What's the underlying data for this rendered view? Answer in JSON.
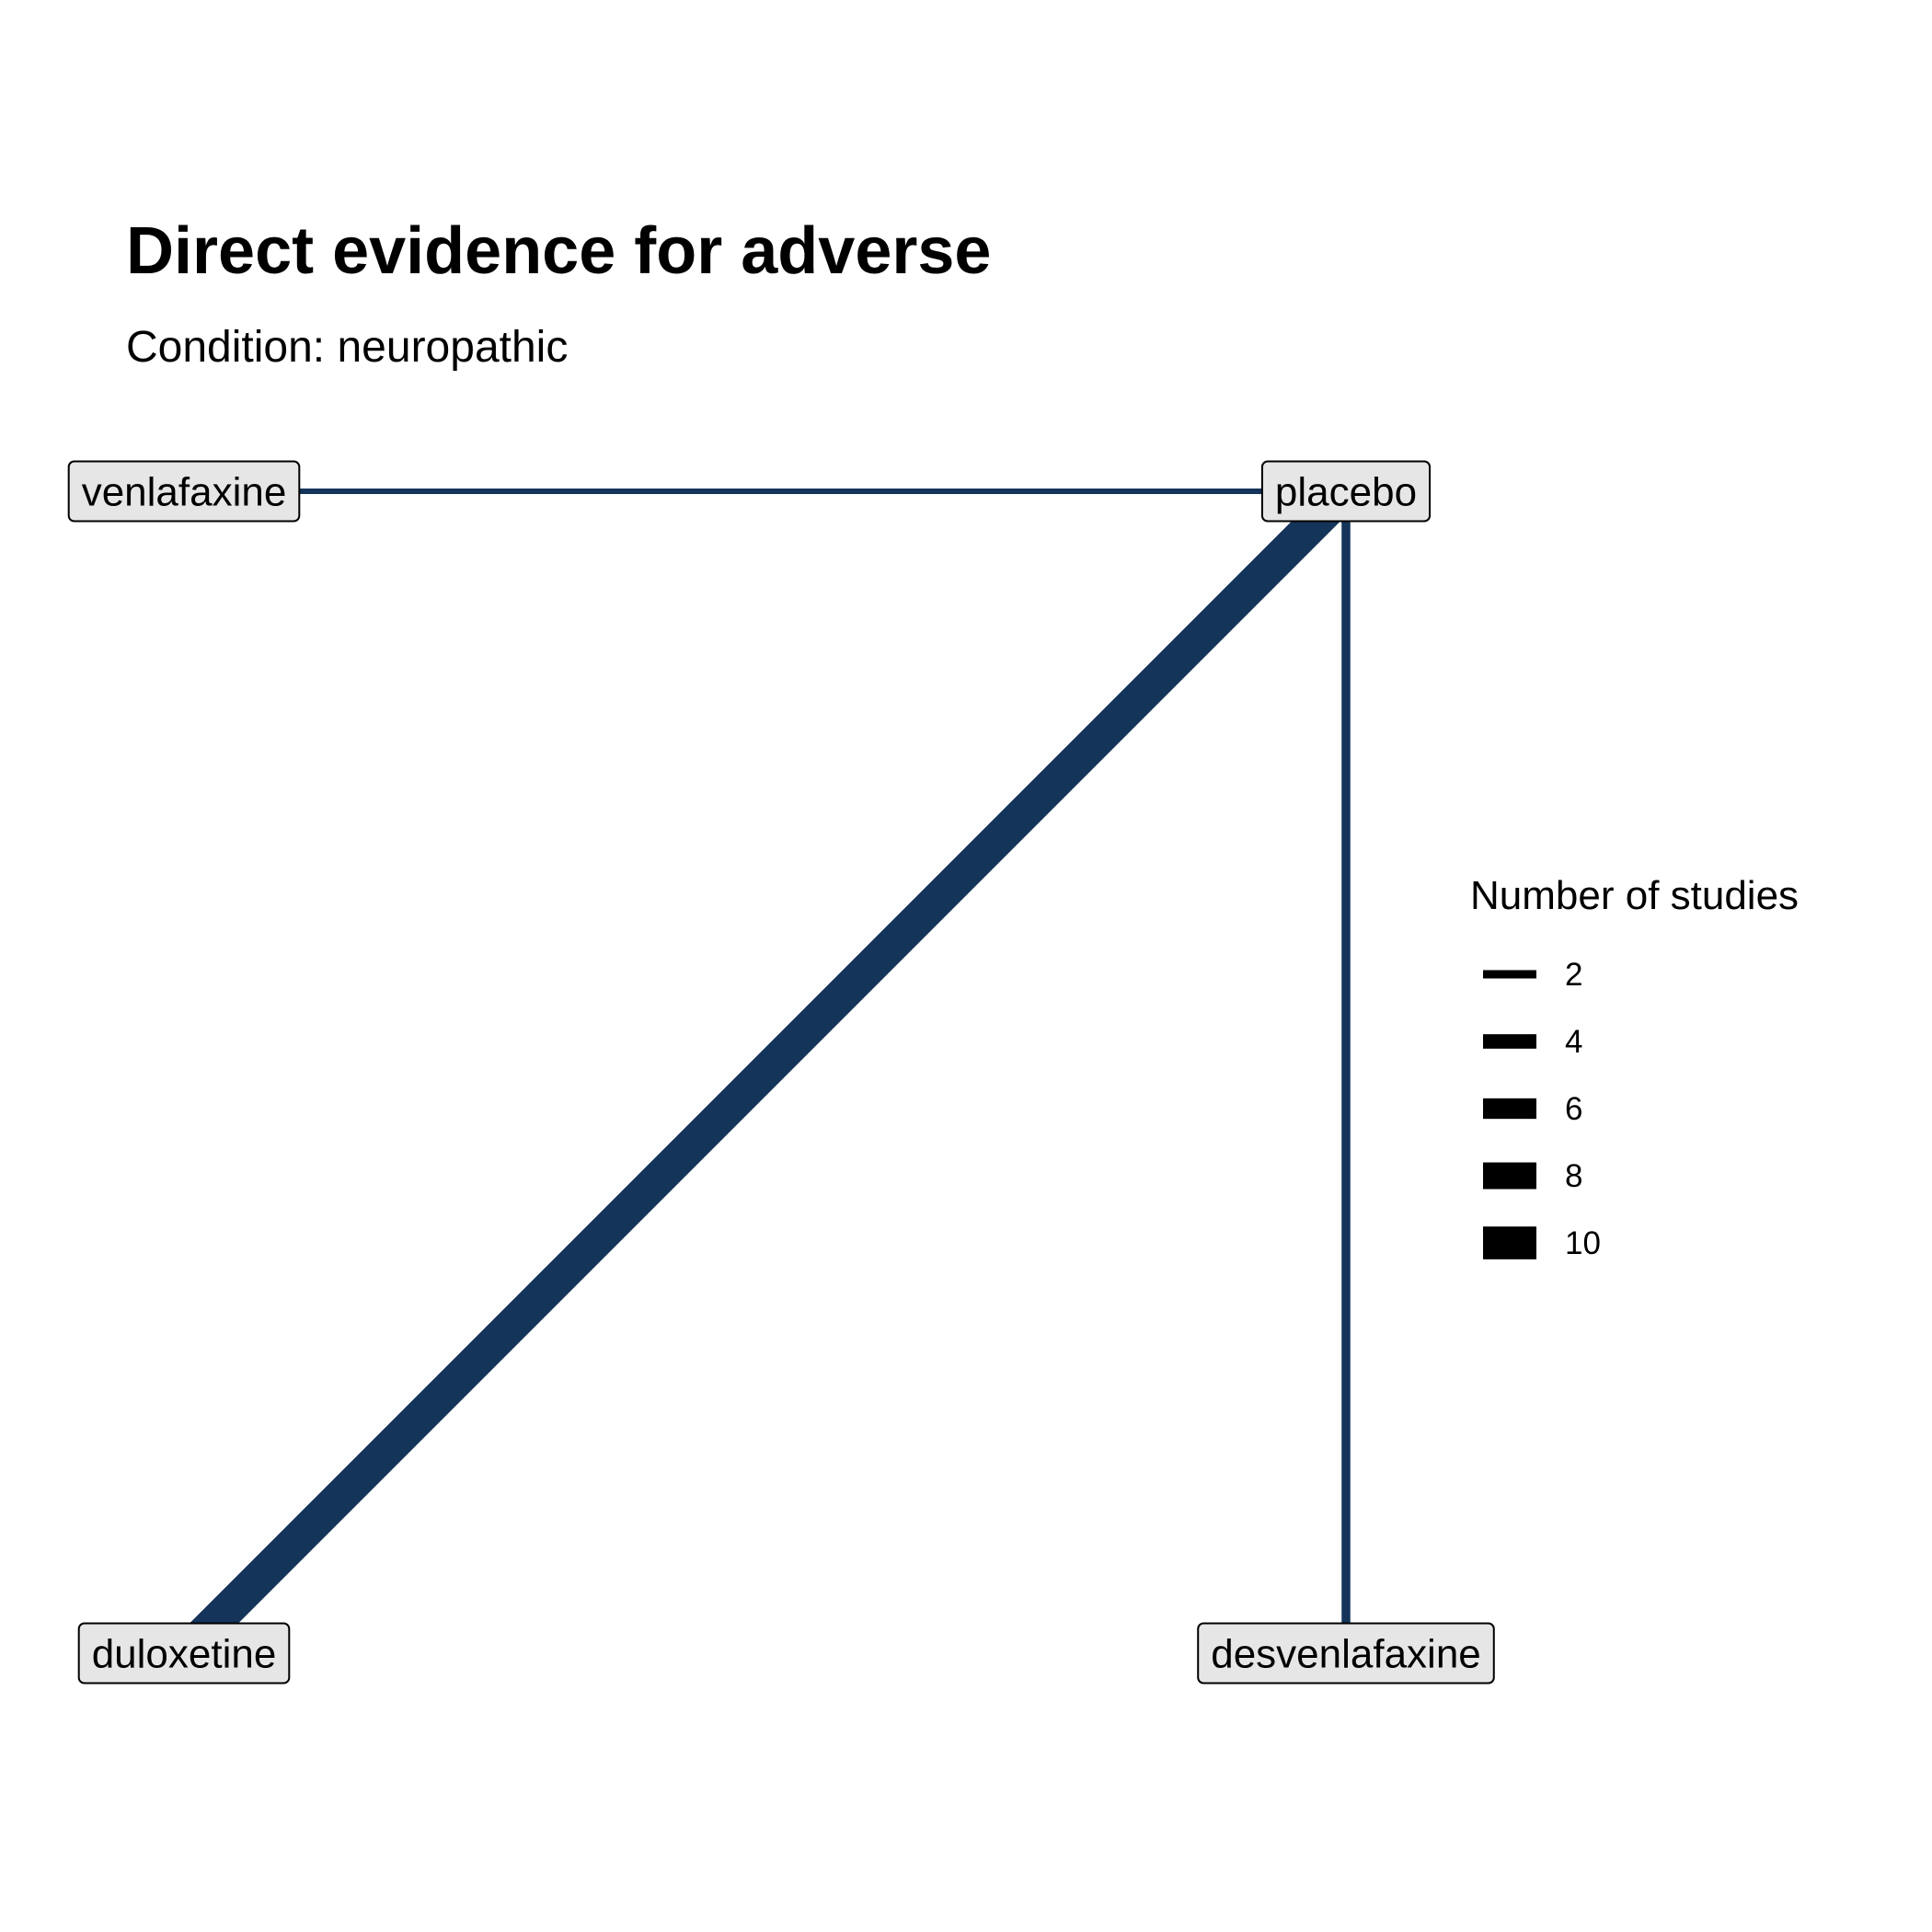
{
  "title": "Direct evidence for adverse",
  "subtitle": "Condition: neuropathic",
  "colors": {
    "edge": "#14345a",
    "node_fill": "#e6e6e6",
    "node_border": "#000000",
    "legend_mark": "#000000"
  },
  "nodes": [
    {
      "id": "venlafaxine",
      "label": "venlafaxine"
    },
    {
      "id": "placebo",
      "label": "placebo"
    },
    {
      "id": "duloxetine",
      "label": "duloxetine"
    },
    {
      "id": "desvenlafaxine",
      "label": "desvenlafaxine"
    }
  ],
  "edges": [
    {
      "from": "venlafaxine",
      "to": "placebo",
      "studies": 1
    },
    {
      "from": "placebo",
      "to": "duloxetine",
      "studies": 10
    },
    {
      "from": "placebo",
      "to": "desvenlafaxine",
      "studies": 2
    }
  ],
  "legend": {
    "title": "Number of studies",
    "items": [
      {
        "label": "2",
        "value": 2
      },
      {
        "label": "4",
        "value": 4
      },
      {
        "label": "6",
        "value": 6
      },
      {
        "label": "8",
        "value": 8
      },
      {
        "label": "10",
        "value": 10
      }
    ]
  }
}
